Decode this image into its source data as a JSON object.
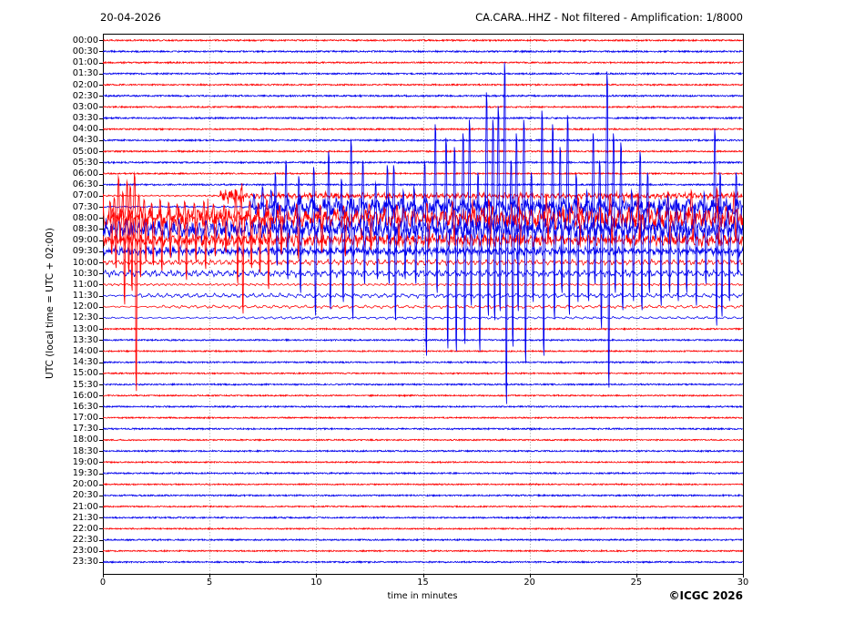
{
  "header": {
    "date_title": "20-04-2026",
    "station_title": "CA.CARA..HHZ - Not filtered - Amplification: 1/8000"
  },
  "footer": {
    "copyright": "©ICGC 2026"
  },
  "chart_data": {
    "type": "line",
    "subtype": "helicorder-drum-plot",
    "title_left": "20-04-2026",
    "title_right": "CA.CARA..HHZ - Not filtered - Amplification: 1/8000",
    "xlabel": "time in minutes",
    "ylabel": "UTC (local time = UTC + 02:00)",
    "x_range": [
      0,
      30
    ],
    "x_ticks": [
      0,
      5,
      10,
      15,
      20,
      25,
      30
    ],
    "grid_x_minutes": [
      5,
      10,
      15,
      20,
      25
    ],
    "grid": "vertical-dotted",
    "legend": "none",
    "colors": {
      "red_trace": "#ff0000",
      "blue_trace": "#0000ee",
      "grid": "#8a8a8a",
      "axis": "#000000",
      "background": "#ffffff"
    },
    "row_description": "48 half-hour traces, 30 minutes per line, colors alternate red/blue; amp values are half-amplitudes in screen px; segments are [start_min, end_min, amp]",
    "rows": [
      {
        "label": "00:00",
        "color": "red",
        "character": "noise",
        "amp": 0.6
      },
      {
        "label": "00:30",
        "color": "blue",
        "character": "noise",
        "amp": 0.65
      },
      {
        "label": "01:00",
        "color": "red",
        "character": "noise",
        "amp": 0.6
      },
      {
        "label": "01:30",
        "color": "blue",
        "character": "noise",
        "amp": 0.65
      },
      {
        "label": "02:00",
        "color": "red",
        "character": "noise",
        "amp": 0.6
      },
      {
        "label": "02:30",
        "color": "blue",
        "character": "noise",
        "amp": 0.65
      },
      {
        "label": "03:00",
        "color": "red",
        "character": "noise",
        "amp": 0.6
      },
      {
        "label": "03:30",
        "color": "blue",
        "character": "noise",
        "amp": 0.65
      },
      {
        "label": "04:00",
        "color": "red",
        "character": "noise",
        "amp": 0.6
      },
      {
        "label": "04:30",
        "color": "blue",
        "character": "noise",
        "amp": 0.65
      },
      {
        "label": "05:00",
        "color": "red",
        "character": "noise",
        "amp": 0.6
      },
      {
        "label": "05:30",
        "color": "blue",
        "character": "noise",
        "amp": 0.65
      },
      {
        "label": "06:00",
        "color": "red",
        "character": "noise",
        "amp": 0.6
      },
      {
        "label": "06:30",
        "color": "blue",
        "character": "noise",
        "amp": 0.65
      },
      {
        "label": "07:00",
        "color": "red",
        "character": "mixed",
        "period": 0.25,
        "segments": [
          [
            0,
            5.5,
            0.6
          ],
          [
            5.5,
            6.6,
            5.5
          ],
          [
            6.6,
            30,
            2.2
          ]
        ]
      },
      {
        "label": "07:30",
        "color": "blue",
        "character": "mixed",
        "period": 0.5,
        "segments": [
          [
            0,
            6.8,
            0.7
          ],
          [
            6.8,
            8,
            3
          ],
          [
            8,
            14,
            8
          ],
          [
            14,
            30,
            6.5
          ]
        ]
      },
      {
        "label": "08:00",
        "color": "red",
        "character": "mixed",
        "period": 0.4,
        "segments": [
          [
            0,
            8,
            8
          ],
          [
            8,
            17,
            7
          ],
          [
            17,
            30,
            9
          ]
        ]
      },
      {
        "label": "08:30",
        "color": "blue",
        "character": "mixed",
        "period": 0.35,
        "segments": [
          [
            0,
            8,
            7
          ],
          [
            8,
            30,
            8
          ]
        ]
      },
      {
        "label": "09:00",
        "color": "red",
        "character": "mixed",
        "period": 0.3,
        "amp": 4.5
      },
      {
        "label": "09:30",
        "color": "blue",
        "character": "mixed",
        "period": 0.3,
        "amp": 3
      },
      {
        "label": "10:00",
        "color": "red",
        "character": "sine",
        "period": 0.3,
        "amp": 1.9
      },
      {
        "label": "10:30",
        "color": "blue",
        "character": "sine",
        "period": 0.33,
        "amp": 2.3
      },
      {
        "label": "11:00",
        "color": "red",
        "character": "sine",
        "period": 0.3,
        "amp": 0.8
      },
      {
        "label": "11:30",
        "color": "blue",
        "character": "sine",
        "period": 0.4,
        "segments": [
          [
            0,
            1.5,
            0.6
          ],
          [
            1.5,
            30,
            1.5
          ]
        ]
      },
      {
        "label": "12:00",
        "color": "red",
        "character": "sine",
        "period": 0.45,
        "segments": [
          [
            0,
            2.5,
            0.5
          ],
          [
            2.5,
            30,
            1.1
          ]
        ]
      },
      {
        "label": "12:30",
        "color": "blue",
        "character": "sine",
        "period": 0.4,
        "segments": [
          [
            0,
            6,
            0.5
          ],
          [
            6,
            30,
            0.85
          ]
        ]
      },
      {
        "label": "13:00",
        "color": "red",
        "character": "noise",
        "amp": 0.6
      },
      {
        "label": "13:30",
        "color": "blue",
        "character": "noise",
        "amp": 0.6
      },
      {
        "label": "14:00",
        "color": "red",
        "character": "noise",
        "amp": 0.55
      },
      {
        "label": "14:30",
        "color": "blue",
        "character": "noise",
        "amp": 0.6
      },
      {
        "label": "15:00",
        "color": "red",
        "character": "noise",
        "amp": 0.55
      },
      {
        "label": "15:30",
        "color": "blue",
        "character": "noise",
        "amp": 0.6
      },
      {
        "label": "16:00",
        "color": "red",
        "character": "noise",
        "amp": 0.55
      },
      {
        "label": "16:30",
        "color": "blue",
        "character": "noise",
        "amp": 0.6
      },
      {
        "label": "17:00",
        "color": "red",
        "character": "noise",
        "amp": 0.55
      },
      {
        "label": "17:30",
        "color": "blue",
        "character": "noise",
        "amp": 0.6
      },
      {
        "label": "18:00",
        "color": "red",
        "character": "noise",
        "amp": 0.55
      },
      {
        "label": "18:30",
        "color": "blue",
        "character": "noise",
        "amp": 0.6
      },
      {
        "label": "19:00",
        "color": "red",
        "character": "noise",
        "amp": 0.55
      },
      {
        "label": "19:30",
        "color": "blue",
        "character": "noise",
        "amp": 0.6
      },
      {
        "label": "20:00",
        "color": "red",
        "character": "noise",
        "amp": 0.55
      },
      {
        "label": "20:30",
        "color": "blue",
        "character": "noise",
        "amp": 0.6
      },
      {
        "label": "21:00",
        "color": "red",
        "character": "noise",
        "amp": 0.55
      },
      {
        "label": "21:30",
        "color": "blue",
        "character": "noise",
        "amp": 0.6
      },
      {
        "label": "22:00",
        "color": "red",
        "character": "noise",
        "amp": 0.55
      },
      {
        "label": "22:30",
        "color": "blue",
        "character": "noise",
        "amp": 0.6
      },
      {
        "label": "23:00",
        "color": "red",
        "character": "noise",
        "amp": 0.55
      },
      {
        "label": "23:30",
        "color": "blue",
        "character": "noise",
        "amp": 0.6
      }
    ],
    "spike_format": "[minute, up_px, down_px]",
    "spike_events": [
      {
        "row": 15,
        "points": [
          [
            7.1,
            14,
            8
          ],
          [
            7.5,
            22,
            12
          ],
          [
            7.9,
            18,
            10
          ]
        ]
      },
      {
        "row": 16,
        "points": [
          [
            0.35,
            18,
            40
          ],
          [
            0.55,
            22,
            55
          ],
          [
            0.75,
            45,
            28
          ],
          [
            0.95,
            28,
            95
          ],
          [
            1.15,
            40,
            60
          ],
          [
            1.3,
            35,
            80
          ],
          [
            1.5,
            48,
            190
          ],
          [
            1.7,
            25,
            65
          ],
          [
            1.95,
            20,
            48
          ],
          [
            2.3,
            16,
            52
          ],
          [
            2.7,
            20,
            58
          ],
          [
            3.1,
            17,
            44
          ],
          [
            3.5,
            15,
            50
          ],
          [
            3.85,
            18,
            68
          ],
          [
            4.3,
            16,
            48
          ],
          [
            4.75,
            18,
            56
          ],
          [
            5.2,
            15,
            42
          ],
          [
            5.7,
            14,
            38
          ],
          [
            6.25,
            28,
            72
          ],
          [
            6.5,
            24,
            105
          ],
          [
            6.9,
            18,
            55
          ],
          [
            7.3,
            16,
            60
          ],
          [
            7.7,
            20,
            78
          ],
          [
            8.3,
            14,
            40
          ],
          [
            9.1,
            15,
            45
          ],
          [
            10.2,
            14,
            38
          ],
          [
            11.3,
            13,
            42
          ],
          [
            12.5,
            15,
            35
          ],
          [
            13.8,
            14,
            30
          ],
          [
            15.2,
            16,
            32
          ],
          [
            16.4,
            18,
            28
          ],
          [
            18.1,
            20,
            30
          ],
          [
            19.5,
            22,
            28
          ],
          [
            20.8,
            24,
            26
          ],
          [
            22.3,
            22,
            30
          ],
          [
            23.8,
            25,
            28
          ],
          [
            25.1,
            26,
            24
          ],
          [
            26.5,
            28,
            26
          ],
          [
            27.6,
            30,
            25
          ],
          [
            28.8,
            32,
            28
          ],
          [
            29.6,
            28,
            22
          ]
        ]
      },
      {
        "row": 17,
        "points": [
          [
            8.1,
            62,
            40
          ],
          [
            8.6,
            75,
            55
          ],
          [
            9.2,
            58,
            70
          ],
          [
            9.9,
            68,
            95
          ],
          [
            10.6,
            85,
            88
          ],
          [
            11.2,
            55,
            80
          ],
          [
            11.65,
            98,
            99
          ],
          [
            12.2,
            75,
            60
          ],
          [
            12.8,
            50,
            55
          ],
          [
            13.35,
            70,
            60
          ],
          [
            13.65,
            70,
            100
          ],
          [
            14.1,
            42,
            55
          ],
          [
            14.6,
            46,
            60
          ],
          [
            15.1,
            75,
            139
          ],
          [
            15.6,
            115,
            70
          ],
          [
            16.1,
            100,
            131
          ],
          [
            16.5,
            90,
            134
          ],
          [
            16.9,
            105,
            126
          ],
          [
            17.2,
            120,
            84
          ],
          [
            17.6,
            62,
            134
          ],
          [
            18.0,
            150,
            95
          ],
          [
            18.3,
            120,
            100
          ],
          [
            18.55,
            135,
            90
          ],
          [
            18.85,
            183,
            192
          ],
          [
            19.15,
            75,
            129
          ],
          [
            19.4,
            105,
            90
          ],
          [
            19.75,
            120,
            147
          ],
          [
            20.1,
            62,
            80
          ],
          [
            20.6,
            130,
            139
          ],
          [
            21.1,
            115,
            99
          ],
          [
            21.45,
            90,
            70
          ],
          [
            21.8,
            125,
            94
          ],
          [
            22.2,
            60,
            80
          ],
          [
            22.7,
            42,
            79
          ],
          [
            23.0,
            105,
            60
          ],
          [
            23.3,
            75,
            109
          ],
          [
            23.65,
            173,
            174
          ],
          [
            23.95,
            105,
            70
          ],
          [
            24.3,
            95,
            89
          ],
          [
            24.8,
            42,
            79
          ],
          [
            25.2,
            85,
            89
          ],
          [
            25.55,
            62,
            70
          ],
          [
            26.1,
            32,
            84
          ],
          [
            26.5,
            36,
            70
          ],
          [
            26.9,
            30,
            79
          ],
          [
            27.3,
            26,
            70
          ],
          [
            27.75,
            26,
            84
          ],
          [
            28.2,
            40,
            60
          ],
          [
            28.7,
            110,
            106
          ],
          [
            28.95,
            62,
            96
          ],
          [
            29.3,
            24,
            79
          ],
          [
            29.7,
            62,
            50
          ]
        ]
      }
    ]
  }
}
